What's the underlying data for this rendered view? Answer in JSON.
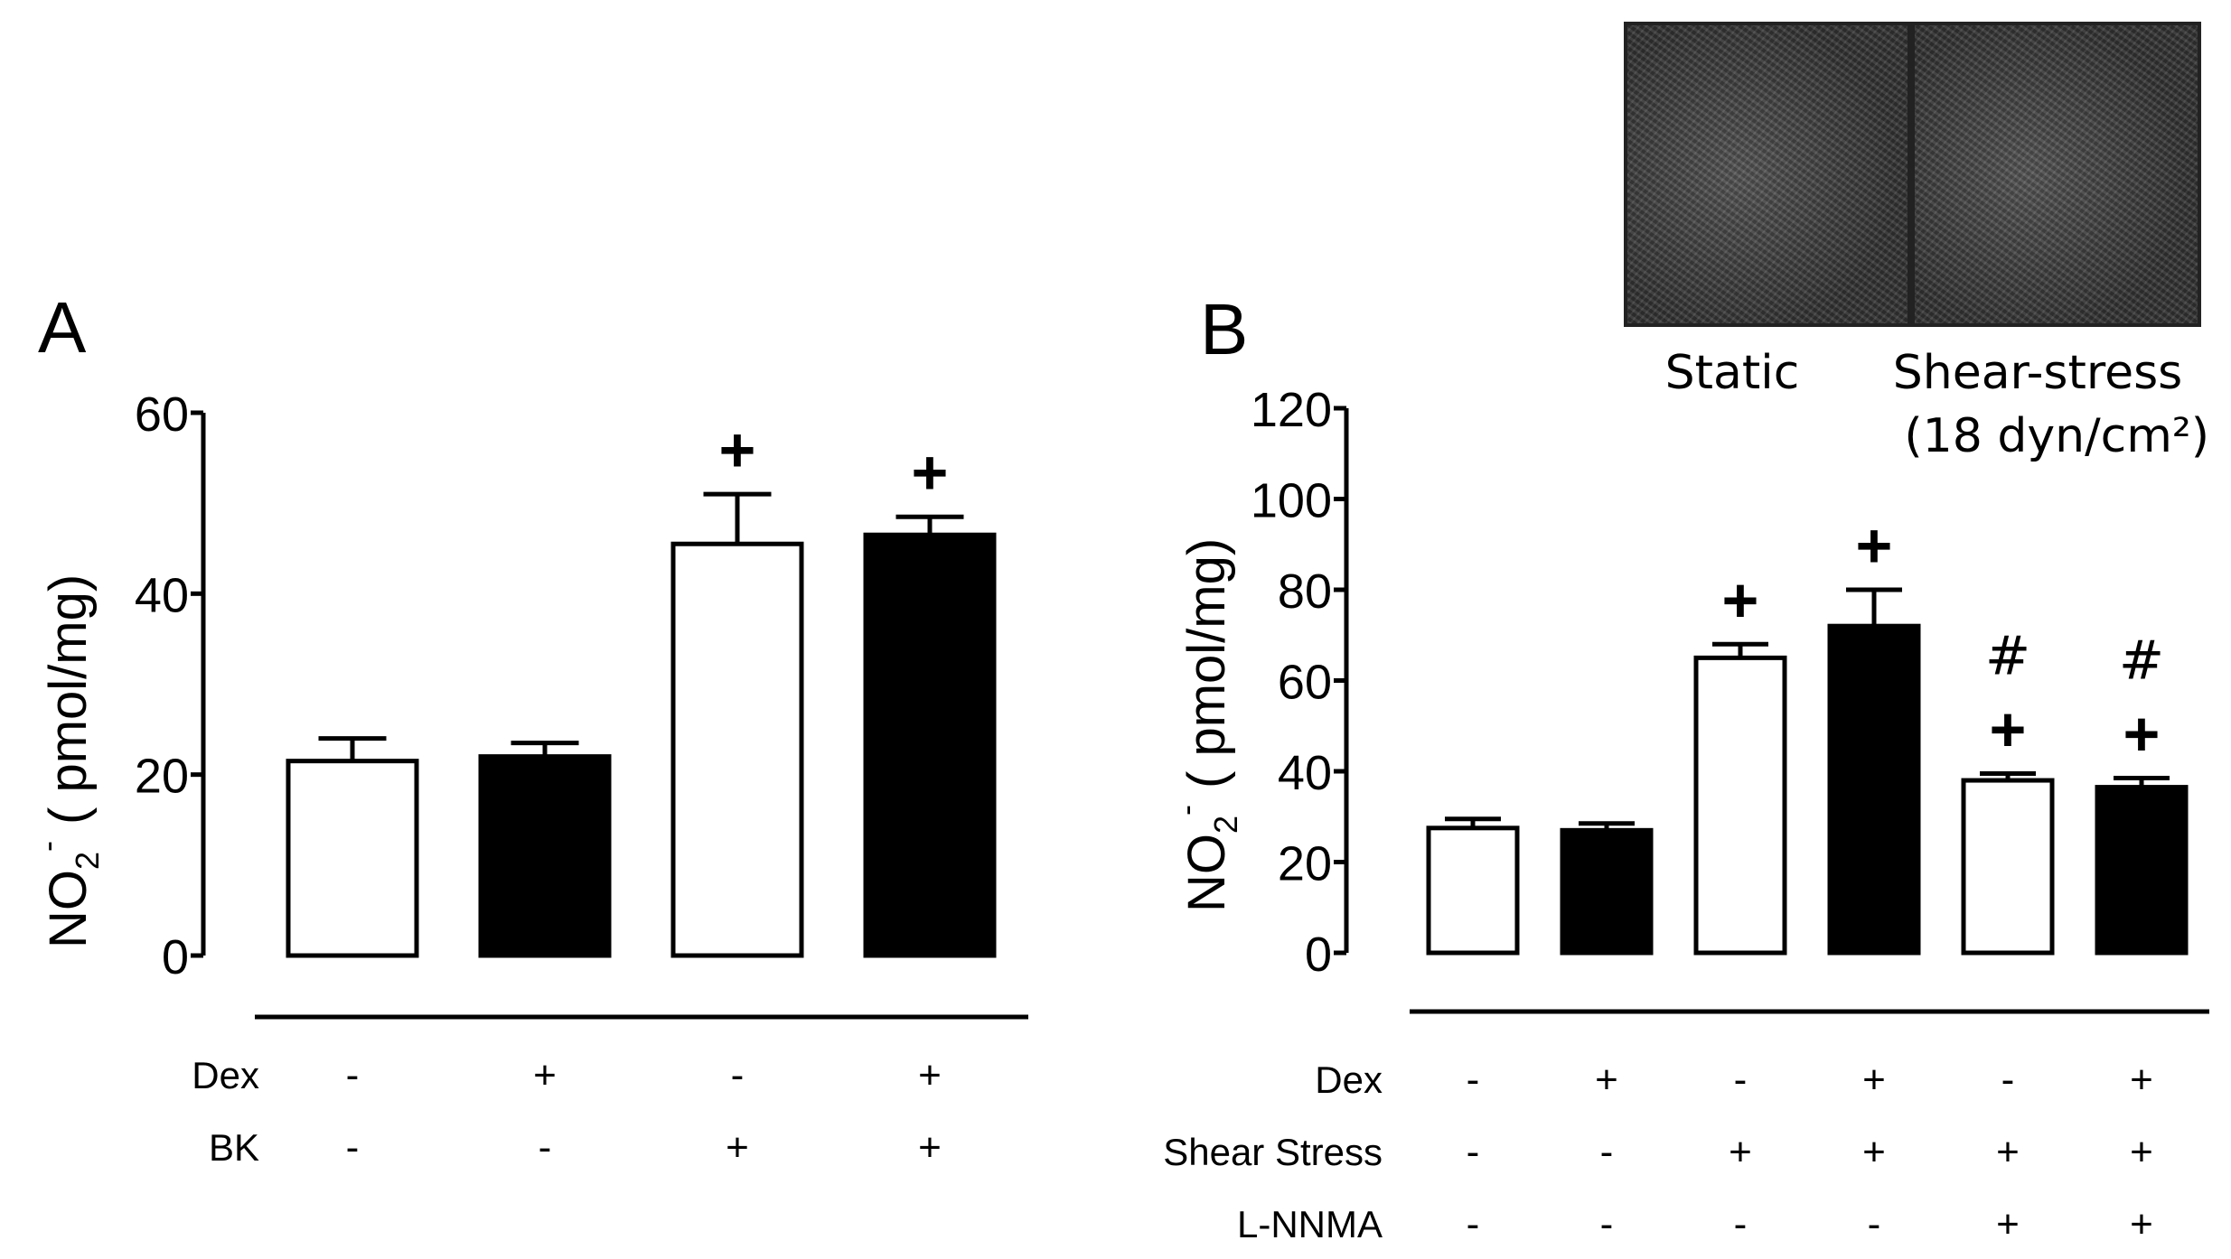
{
  "chart_data": [
    {
      "type": "bar",
      "panel_label": "A",
      "ylabel_main": "NO",
      "ylabel_sub": "2",
      "ylabel_sup": "-",
      "ylabel_units": "( pmol/mg)",
      "ylim": [
        0,
        60
      ],
      "yticks": [
        "0",
        "20",
        "40",
        "60"
      ],
      "ytick_values": [
        0,
        20,
        40,
        60
      ],
      "values": [
        21.5,
        22,
        45.5,
        46.5
      ],
      "errors": [
        2.5,
        1.5,
        5.5,
        2
      ],
      "fills": [
        "white",
        "black",
        "white",
        "black"
      ],
      "annotations": [
        "",
        "",
        "+",
        "+"
      ],
      "conditions": [
        {
          "label": "Dex",
          "values": [
            "-",
            "+",
            "-",
            "+"
          ]
        },
        {
          "label": "BK",
          "values": [
            "-",
            "-",
            "+",
            "+"
          ]
        }
      ]
    },
    {
      "type": "bar",
      "panel_label": "B",
      "ylabel_main": "NO",
      "ylabel_sub": "2",
      "ylabel_sup": "-",
      "ylabel_units": "( pmol/mg)",
      "ylim": [
        0,
        120
      ],
      "yticks": [
        "0",
        "20",
        "40",
        "60",
        "80",
        "100",
        "120"
      ],
      "ytick_values": [
        0,
        20,
        40,
        60,
        80,
        100,
        120
      ],
      "values": [
        27.5,
        27,
        65,
        72,
        38,
        36.5
      ],
      "errors": [
        2,
        1.5,
        3,
        8,
        1.5,
        2
      ],
      "fills": [
        "white",
        "black",
        "white",
        "black",
        "white",
        "black"
      ],
      "annotations_top": [
        "",
        "",
        "",
        "",
        "#",
        "#"
      ],
      "annotations": [
        "",
        "",
        "+",
        "+",
        "+",
        "+"
      ],
      "conditions": [
        {
          "label": "Dex",
          "values": [
            "-",
            "+",
            "-",
            "+",
            "-",
            "+"
          ]
        },
        {
          "label": "Shear Stress",
          "values": [
            "-",
            "-",
            "+",
            "+",
            "+",
            "+"
          ]
        },
        {
          "label": "L-NNMA",
          "values": [
            "-",
            "-",
            "-",
            "-",
            "+",
            "+"
          ]
        }
      ]
    }
  ],
  "inset": {
    "static_label": "Static",
    "shear_label": "Shear-stress",
    "shear_units": "(18 dyn/cm²)"
  }
}
